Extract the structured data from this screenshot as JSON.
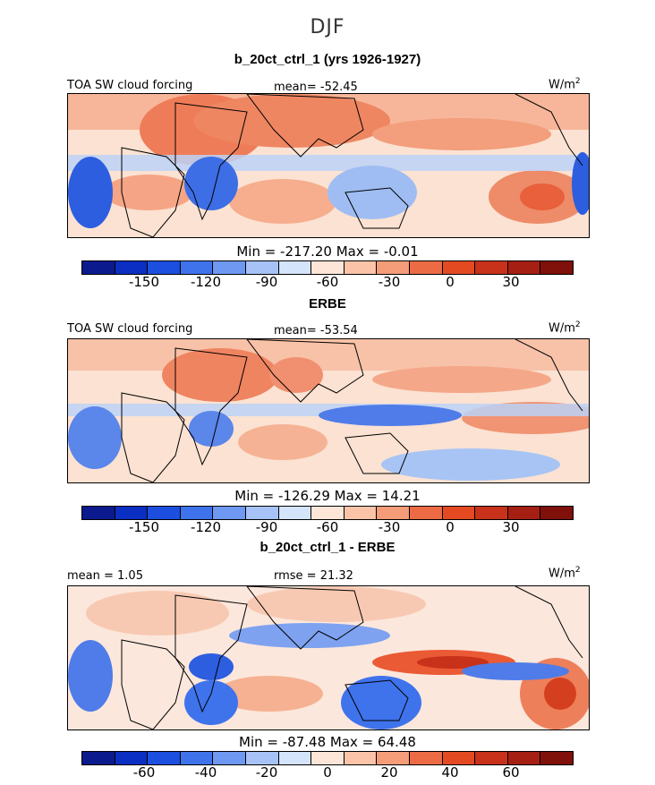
{
  "figure": {
    "title": "DJF",
    "units_label": "W/m",
    "units_sup": "2"
  },
  "panels": [
    {
      "subtitle": "b_20ct_ctrl_1 (yrs 1926-1927)",
      "left_label": "TOA SW cloud forcing",
      "center_label": "mean= -52.45",
      "minmax": "Min = -217.20 Max =  -0.01",
      "colorbar_ticks": [
        "-150",
        "-120",
        "-90",
        "-60",
        "-30",
        "0",
        "30"
      ],
      "colorbar_colors": [
        "#0b1a8c",
        "#0a2fc2",
        "#1c4fe0",
        "#3f73ec",
        "#6e98f2",
        "#a6c2f7",
        "#d4e4fb",
        "#fde6d8",
        "#fbc4a8",
        "#f59d78",
        "#ec6b45",
        "#e34a22",
        "#c8311a",
        "#a51f12",
        "#80100a"
      ]
    },
    {
      "subtitle": "ERBE",
      "left_label": "TOA SW cloud forcing",
      "center_label": "mean= -53.54",
      "minmax": "Min = -126.29 Max =  14.21",
      "colorbar_ticks": [
        "-150",
        "-120",
        "-90",
        "-60",
        "-30",
        "0",
        "30"
      ],
      "colorbar_colors": [
        "#0b1a8c",
        "#0a2fc2",
        "#1c4fe0",
        "#3f73ec",
        "#6e98f2",
        "#a6c2f7",
        "#d4e4fb",
        "#fde6d8",
        "#fbc4a8",
        "#f59d78",
        "#ec6b45",
        "#e34a22",
        "#c8311a",
        "#a51f12",
        "#80100a"
      ]
    },
    {
      "subtitle": "b_20ct_ctrl_1 - ERBE",
      "left_label": "mean =  1.05",
      "center_label": "rmse =  21.32",
      "minmax": "Min = -87.48 Max =  64.48",
      "colorbar_ticks": [
        "-60",
        "-40",
        "-20",
        "0",
        "20",
        "40",
        "60"
      ],
      "colorbar_colors": [
        "#0b1a8c",
        "#0a2fc2",
        "#1c4fe0",
        "#3f73ec",
        "#6e98f2",
        "#a6c2f7",
        "#d4e4fb",
        "#fde6d8",
        "#fbc4a8",
        "#f59d78",
        "#ec6b45",
        "#e34a22",
        "#c8311a",
        "#a51f12",
        "#80100a"
      ]
    }
  ]
}
